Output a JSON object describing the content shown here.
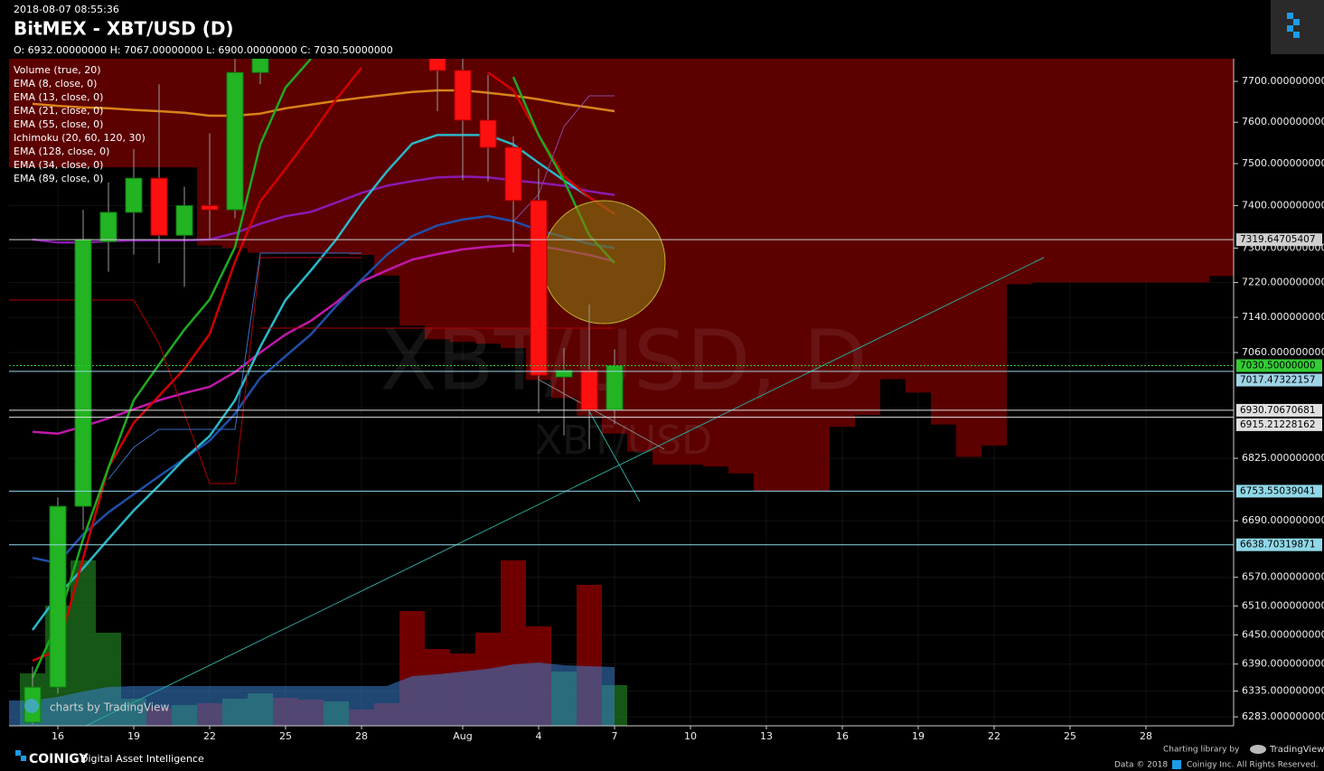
{
  "page": {
    "timestamp": "2018-08-07 08:55:36",
    "title": "BitMEX - XBT/USD (D)",
    "ohlc_line": "O: 6932.00000000 H: 7067.00000000 L: 6900.00000000 C: 7030.50000000",
    "watermark": "XBT/USD, D",
    "watermark_small": "XBT/USD",
    "tv_badge": "charts by TradingView",
    "brand": "COINIGY",
    "brand_tagline": "Digital Asset Intelligence",
    "charting_library": "Charting library by",
    "tradingview": "TradingView",
    "data_copyright": "Data © 2018",
    "rights": "Coinigy Inc. All Rights Reserved."
  },
  "chart_data": {
    "type": "candlestick",
    "log_scale": true,
    "grid": true,
    "categories": [
      null,
      "16",
      null,
      null,
      "19",
      null,
      null,
      "22",
      null,
      null,
      "25",
      null,
      null,
      "28",
      null,
      null,
      null,
      "Aug",
      null,
      null,
      "4",
      null,
      null,
      "7",
      null,
      null,
      "10",
      null,
      null,
      "13",
      null,
      null,
      "16",
      null,
      null,
      "19",
      null,
      null,
      "22",
      null,
      null,
      "25",
      null,
      null,
      "28",
      null,
      null,
      null
    ],
    "ylim": [
      6265,
      7756
    ],
    "yticks": [
      {
        "value": 7700,
        "label": "7700.000000000"
      },
      {
        "value": 7600,
        "label": "7600.000000000"
      },
      {
        "value": 7500,
        "label": "7500.000000000"
      },
      {
        "value": 7400,
        "label": "7400.000000000"
      },
      {
        "value": 7300,
        "label": "7300.000000000"
      },
      {
        "value": 7220,
        "label": "7220.000000000"
      },
      {
        "value": 7140,
        "label": "7140.000000000"
      },
      {
        "value": 7060,
        "label": "7060.000000000"
      },
      {
        "value": 6825,
        "label": "6825.000000000"
      },
      {
        "value": 6690,
        "label": "6690.000000000"
      },
      {
        "value": 6570,
        "label": "6570.000000000"
      },
      {
        "value": 6510,
        "label": "6510.000000000"
      },
      {
        "value": 6450,
        "label": "6450.000000000"
      },
      {
        "value": 6390,
        "label": "6390.000000000"
      },
      {
        "value": 6335,
        "label": "6335.000000000"
      },
      {
        "value": 6283,
        "label": "6283.000000000"
      }
    ],
    "candles": {
      "up_color": "#22b422",
      "down_color": "#ff1010",
      "open": [
        6272,
        6343,
        6721,
        7315,
        7384,
        7465,
        7330,
        7400,
        7390,
        7722,
        null,
        null,
        null,
        null,
        null,
        null,
        7800,
        7727,
        7605,
        7539,
        7412,
        7005,
        7020,
        6932,
        null,
        null,
        null,
        null,
        null,
        null,
        null,
        null,
        null,
        null,
        null,
        null,
        null,
        null,
        null,
        null,
        null,
        null,
        null,
        null,
        null,
        null,
        null,
        null
      ],
      "high": [
        6385,
        6740,
        7390,
        7455,
        7535,
        7693,
        7445,
        7573,
        7760,
        7800,
        null,
        null,
        null,
        null,
        null,
        null,
        7820,
        7770,
        7716,
        7566,
        7488,
        7070,
        7169,
        7067,
        null,
        null,
        null,
        null,
        null,
        null,
        null,
        null,
        null,
        null,
        null,
        null,
        null,
        null,
        null,
        null,
        null,
        null,
        null,
        null,
        null,
        null,
        null,
        null
      ],
      "low": [
        6268,
        6330,
        6670,
        7245,
        7285,
        7265,
        7210,
        7322,
        7370,
        7693,
        null,
        null,
        null,
        null,
        null,
        null,
        7627,
        7460,
        7457,
        7290,
        6925,
        6875,
        6845,
        6900,
        null,
        null,
        null,
        null,
        null,
        null,
        null,
        null,
        null,
        null,
        null,
        null,
        null,
        null,
        null,
        null,
        null,
        null,
        null,
        null,
        null,
        null,
        null,
        null
      ],
      "close": [
        6343,
        6721,
        7320,
        7384,
        7465,
        7330,
        7400,
        7390,
        7722,
        7780,
        null,
        null,
        null,
        null,
        null,
        null,
        7727,
        7605,
        7539,
        7412,
        7009,
        7020,
        6932,
        7030.5,
        null,
        null,
        null,
        null,
        null,
        null,
        null,
        null,
        null,
        null,
        null,
        null,
        null,
        null,
        null,
        null,
        null,
        null,
        null,
        null,
        null,
        null,
        null,
        null
      ]
    },
    "volume": {
      "name": "Volume (true, 20)",
      "volume_lim": [
        0,
        400
      ],
      "up_color": "#1f7a1f",
      "down_color": "#a00000",
      "ma_color": "#3a7fd0",
      "values": [
        58,
        133,
        183,
        103,
        30,
        20,
        23,
        25,
        30,
        36,
        31,
        29,
        27,
        18,
        25,
        127,
        85,
        80,
        103,
        183,
        110,
        60,
        156,
        45,
        null,
        null,
        null,
        null,
        null,
        null,
        null,
        null,
        null,
        null,
        null,
        null,
        null,
        null,
        null,
        null,
        null,
        null,
        null,
        null,
        null,
        null,
        null,
        null
      ],
      "direction": [
        "up",
        "up",
        "up",
        "up",
        "up",
        "down",
        "up",
        "down",
        "up",
        "up",
        "down",
        "down",
        "up",
        "down",
        "down",
        "down",
        "down",
        "down",
        "down",
        "down",
        "down",
        "up",
        "down",
        "up",
        null,
        null,
        null,
        null,
        null,
        null,
        null,
        null,
        null,
        null,
        null,
        null,
        null,
        null,
        null,
        null,
        null,
        null,
        null,
        null,
        null,
        null,
        null,
        null
      ],
      "ma": [
        28,
        32,
        38,
        43,
        44,
        44,
        44,
        44,
        44,
        44,
        44,
        44,
        44,
        44,
        44,
        55,
        57,
        60,
        63,
        68,
        70,
        67,
        66,
        65,
        null,
        null,
        null,
        null,
        null,
        null,
        null,
        null,
        null,
        null,
        null,
        null,
        null,
        null,
        null,
        null,
        null,
        null,
        null,
        null,
        null,
        null,
        null,
        null
      ]
    },
    "ichimoku": {
      "name": "Ichimoku (20, 60, 120, 30)",
      "color": "#5c0000",
      "cloud_bottom": [
        7491,
        7491,
        7491,
        7491,
        7491,
        7491,
        7491,
        7306,
        7300,
        7289,
        7289,
        7289,
        7287,
        7284,
        7236,
        7121,
        7090,
        7084,
        7080,
        7070,
        6998,
        6958,
        6918,
        6879,
        6840,
        6811,
        6811,
        6807,
        6792,
        6753,
        6753,
        6753,
        6894,
        6920,
        7000,
        6970,
        6899,
        6828,
        6853,
        7216,
        7220,
        7220,
        7220,
        7220,
        7220,
        7220,
        7220,
        7235
      ]
    },
    "series": [
      {
        "name": "EMA (8, close, 0)",
        "color": "#1faa1f",
        "values": [
          6362,
          6476,
          6651,
          6805,
          6953,
          7033,
          7112,
          7181,
          7302,
          7546,
          7685,
          7756,
          null,
          null,
          null,
          null,
          null,
          null,
          null,
          7711,
          7569,
          7460,
          7330,
          7265,
          null,
          null,
          null,
          null,
          null,
          null,
          null,
          null,
          null,
          null,
          null,
          null,
          null,
          null,
          null,
          null,
          null,
          null,
          null,
          null,
          null,
          null,
          null,
          null
        ]
      },
      {
        "name": "EMA (13, close, 0)",
        "color": "#d00000",
        "values": [
          6397,
          6418,
          6611,
          6805,
          6903,
          6963,
          7023,
          7102,
          7268,
          7410,
          7488,
          7569,
          7656,
          7734,
          null,
          null,
          null,
          null,
          7722,
          7678,
          7569,
          7470,
          7420,
          7380,
          null,
          null,
          null,
          null,
          null,
          null,
          null,
          null,
          null,
          null,
          null,
          null,
          null,
          null,
          null,
          null,
          null,
          null,
          null,
          null,
          null,
          null,
          null,
          null
        ]
      },
      {
        "name": "EMA (21, close, 0)",
        "color": "#2ab8c8",
        "values": [
          6460,
          6532,
          6589,
          6651,
          6712,
          6766,
          6824,
          6874,
          6953,
          7073,
          7180,
          7248,
          7320,
          7405,
          7481,
          7548,
          7569,
          7569,
          7569,
          7546,
          7502,
          7460,
          7420,
          7380,
          null,
          null,
          null,
          null,
          null,
          null,
          null,
          null,
          null,
          null,
          null,
          null,
          null,
          null,
          null,
          null,
          null,
          null,
          null,
          null,
          null,
          null,
          null,
          null
        ]
      },
      {
        "name": "EMA (55, close, 0)",
        "color": "#8a1ab0",
        "values": [
          7320,
          7313,
          7313,
          7316,
          7318,
          7318,
          7318,
          7320,
          7335,
          7357,
          7375,
          7385,
          7407,
          7430,
          7447,
          7458,
          7467,
          7469,
          7467,
          7460,
          7454,
          7447,
          7434,
          7425,
          null,
          null,
          null,
          null,
          null,
          null,
          null,
          null,
          null,
          null,
          null,
          null,
          null,
          null,
          null,
          null,
          null,
          null,
          null,
          null,
          null,
          null,
          null,
          null
        ]
      },
      {
        "name": "EMA (128, close, 0)",
        "color": "#d9821a",
        "values": [
          7645,
          7640,
          7636,
          7634,
          7630,
          7627,
          7623,
          7616,
          7616,
          7621,
          7634,
          7643,
          7652,
          7660,
          7667,
          7674,
          7678,
          7678,
          7672,
          7665,
          7656,
          7645,
          7636,
          7627,
          null,
          null,
          null,
          null,
          null,
          null,
          null,
          null,
          null,
          null,
          null,
          null,
          null,
          null,
          null,
          null,
          null,
          null,
          null,
          null,
          null,
          null,
          null,
          null
        ]
      },
      {
        "name": "EMA (34, close, 0)",
        "color": "#1f4fa8",
        "values": [
          6611,
          6600,
          6661,
          6708,
          6747,
          6786,
          6824,
          6864,
          6923,
          7003,
          7052,
          7101,
          7166,
          7226,
          7284,
          7328,
          7353,
          7367,
          7375,
          7363,
          7342,
          7326,
          7310,
          7300,
          null,
          null,
          null,
          null,
          null,
          null,
          null,
          null,
          null,
          null,
          null,
          null,
          null,
          null,
          null,
          null,
          null,
          null,
          null,
          null,
          null,
          null,
          null,
          null
        ]
      },
      {
        "name": "EMA (89, close, 0)",
        "color": "#c018a8",
        "values": [
          6883,
          6879,
          6895,
          6913,
          6933,
          6953,
          6969,
          6983,
          7016,
          7060,
          7101,
          7132,
          7174,
          7222,
          7248,
          7273,
          7286,
          7297,
          7303,
          7307,
          7305,
          7295,
          7284,
          7269,
          null,
          null,
          null,
          null,
          null,
          null,
          null,
          null,
          null,
          null,
          null,
          null,
          null,
          null,
          null,
          null,
          null,
          null,
          null,
          null,
          null,
          null,
          null,
          null
        ]
      }
    ],
    "price_lines": [
      {
        "value": 7319.64705407,
        "label": "7319.64705407",
        "color": "#cfcfcf"
      },
      {
        "value": 7030.5,
        "label": "7030.50000000",
        "color": "#33cc33",
        "dash": true
      },
      {
        "value": 7017.47322157,
        "label": "7017.47322157",
        "color": "#9fd3e6"
      },
      {
        "value": 6930.70670681,
        "label": "6930.70670681",
        "color": "#e0e0e0"
      },
      {
        "value": 6915.21228162,
        "label": "6915.21228162",
        "color": "#e0e0e0"
      },
      {
        "value": 6753.55039041,
        "label": "6753.55039041",
        "color": "#8fd8e8"
      },
      {
        "value": 6638.70319871,
        "label": "6638.70319871",
        "color": "#8fd8e8"
      }
    ]
  }
}
